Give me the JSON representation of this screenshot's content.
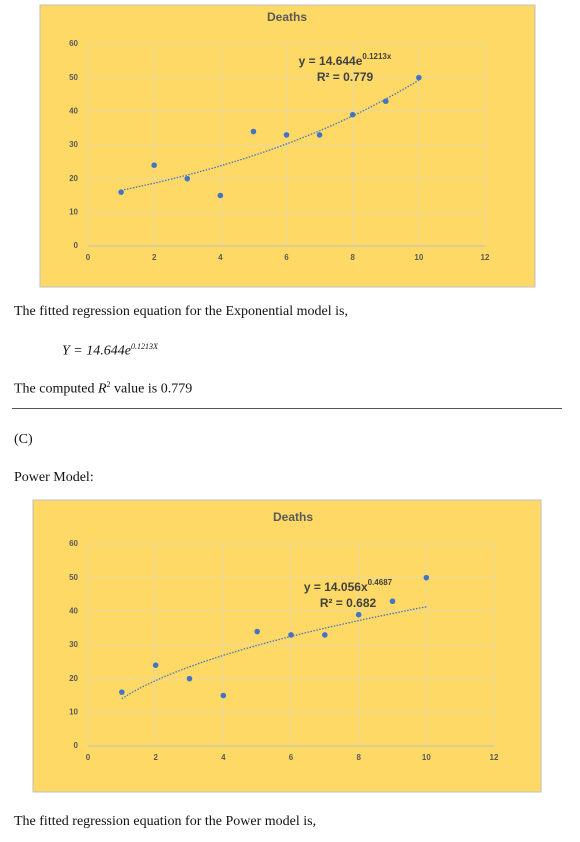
{
  "chart_data": [
    {
      "type": "scatter",
      "title": "Deaths",
      "x": [
        1,
        2,
        3,
        4,
        5,
        6,
        7,
        8,
        9,
        10
      ],
      "values": [
        16,
        24,
        20,
        15,
        34,
        33,
        33,
        39,
        43,
        50
      ],
      "color": "#4472c4",
      "xlim": [
        0,
        12
      ],
      "ylim": [
        0,
        60
      ],
      "xticks": [
        0,
        2,
        4,
        6,
        8,
        10,
        12
      ],
      "yticks": [
        0,
        10,
        20,
        30,
        40,
        50,
        60
      ],
      "grid": true,
      "trendline": {
        "type": "exponential",
        "a": 14.644,
        "b": 0.1213,
        "equation": "y = 14.644e",
        "equation_exponent": "0.1213x",
        "r2_label": "R² = 0.779"
      }
    },
    {
      "type": "scatter",
      "title": "Deaths",
      "x": [
        1,
        2,
        3,
        4,
        5,
        6,
        7,
        8,
        9,
        10
      ],
      "values": [
        16,
        24,
        20,
        15,
        34,
        33,
        33,
        39,
        43,
        50
      ],
      "color": "#4472c4",
      "xlim": [
        0,
        12
      ],
      "ylim": [
        0,
        60
      ],
      "xticks": [
        0,
        2,
        4,
        6,
        8,
        10,
        12
      ],
      "yticks": [
        0,
        10,
        20,
        30,
        40,
        50,
        60
      ],
      "grid": true,
      "trendline": {
        "type": "power",
        "a": 14.056,
        "b": 0.4687,
        "equation": "y = 14.056x",
        "equation_exponent": "0.4687",
        "r2_label": "R² = 0.682"
      }
    }
  ],
  "document": {
    "exp_intro": "The fitted regression equation for the Exponential model is,",
    "exp_equation": {
      "base": "Y = 14.644e",
      "exponent": "0.1213X"
    },
    "exp_r2": {
      "prefix": "The computed ",
      "symbol": "R",
      "power": "2",
      "suffix": " value is 0.779"
    },
    "section": "(C)",
    "power_heading": "Power Model:",
    "power_intro": "The fitted regression equation for the Power model is,"
  }
}
